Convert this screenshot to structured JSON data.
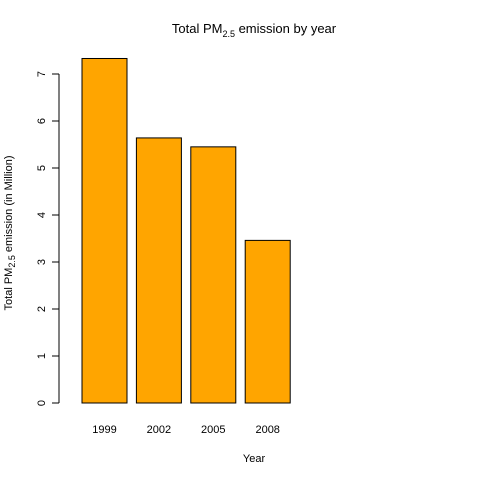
{
  "chart_data": {
    "type": "bar",
    "title": {
      "prefix": "Total PM",
      "subscript": "2.5",
      "suffix": " emission by year"
    },
    "xlabel": "Year",
    "ylabel": {
      "prefix": "Total PM",
      "subscript": "2.5",
      "suffix": " emission (in Million)"
    },
    "categories": [
      "1999",
      "2002",
      "2005",
      "2008"
    ],
    "values": [
      7.33,
      5.64,
      5.45,
      3.46
    ],
    "ylim": [
      0,
      7.0
    ],
    "yticks": [
      "0",
      "1",
      "2",
      "3",
      "4",
      "5",
      "6",
      "7"
    ],
    "bar_color": "#FFA500",
    "bar_border_color": "#000000",
    "grid": false
  }
}
